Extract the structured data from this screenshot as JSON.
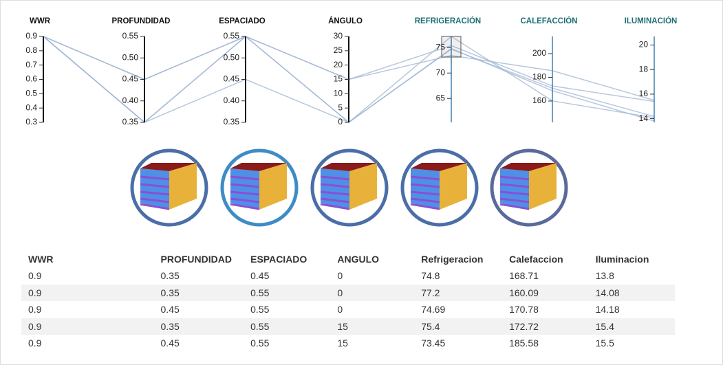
{
  "chart_data": {
    "type": "parallel",
    "line_color": "#9fb6d3",
    "dimensions": [
      {
        "title": "WWR",
        "color": "#111111",
        "ylim": [
          0.3,
          0.9
        ],
        "yticks": [
          0.3,
          0.4,
          0.5,
          0.6,
          0.7,
          0.8,
          0.9
        ]
      },
      {
        "title": "PROFUNDIDAD",
        "color": "#111111",
        "ylim": [
          0.35,
          0.55
        ],
        "yticks": [
          0.35,
          {
            "value": 0.4,
            "label": "0.40"
          },
          0.45,
          {
            "value": 0.5,
            "label": "0.50"
          },
          0.55
        ]
      },
      {
        "title": "ESPACIADO",
        "color": "#111111",
        "ylim": [
          0.35,
          0.55
        ],
        "yticks": [
          0.35,
          {
            "value": 0.4,
            "label": "0.40"
          },
          0.45,
          {
            "value": 0.5,
            "label": "0.50"
          },
          0.55
        ]
      },
      {
        "title": "ÁNGULO",
        "color": "#111111",
        "ylim": [
          0,
          30
        ],
        "yticks": [
          0,
          5,
          10,
          15,
          20,
          25,
          30
        ]
      },
      {
        "title": "REFRIGERACIÓN",
        "color": "#1f6f73",
        "ylim": [
          60.3,
          77.2
        ],
        "yticks": [
          65,
          70,
          75
        ]
      },
      {
        "title": "CALEFACCIÓN",
        "color": "#1f6f73",
        "ylim": [
          142,
          214.5
        ],
        "yticks": [
          160,
          180,
          200
        ]
      },
      {
        "title": "ILUMINACIÓN",
        "color": "#1f6f73",
        "ylim": [
          13.7,
          20.7
        ],
        "yticks": [
          14,
          16,
          18,
          20
        ]
      }
    ]
  },
  "table": {
    "headers": [
      "WWR",
      "PROFUNDIDAD",
      "ESPACIADO",
      "ANGULO",
      "Refrigeracion",
      "Calefaccion",
      "Iluminacion"
    ],
    "rows": [
      [
        0.9,
        0.35,
        0.45,
        0,
        74.8,
        168.71,
        13.8
      ],
      [
        0.9,
        0.35,
        0.55,
        0,
        77.2,
        160.09,
        14.08
      ],
      [
        0.9,
        0.45,
        0.55,
        0,
        74.69,
        170.78,
        14.18
      ],
      [
        0.9,
        0.35,
        0.55,
        15,
        75.4,
        172.72,
        15.4
      ],
      [
        0.9,
        0.45,
        0.55,
        15,
        73.45,
        185.58,
        15.5
      ]
    ]
  }
}
